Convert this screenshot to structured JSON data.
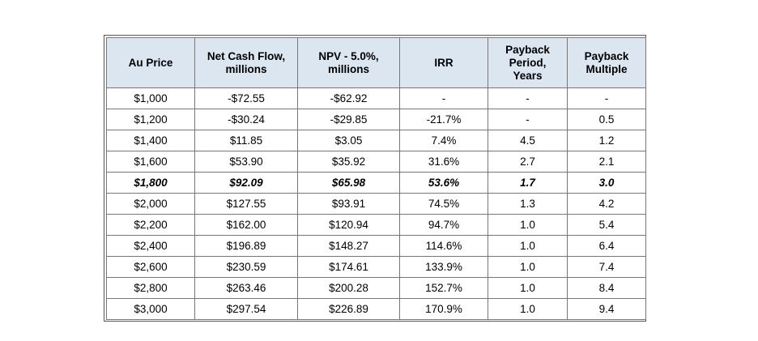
{
  "table": {
    "headers": [
      [
        "Au Price"
      ],
      [
        "Net Cash Flow,",
        "millions"
      ],
      [
        "NPV - 5.0%,",
        "millions"
      ],
      [
        "IRR"
      ],
      [
        "Payback",
        "Period,",
        "Years"
      ],
      [
        "Payback",
        "Multiple"
      ]
    ],
    "rows": [
      {
        "cells": [
          "$1,000",
          "-$72.55",
          "-$62.92",
          "-",
          "-",
          "-"
        ],
        "bold": false
      },
      {
        "cells": [
          "$1,200",
          "-$30.24",
          "-$29.85",
          "-21.7%",
          "-",
          "0.5"
        ],
        "bold": false
      },
      {
        "cells": [
          "$1,400",
          "$11.85",
          "$3.05",
          "7.4%",
          "4.5",
          "1.2"
        ],
        "bold": false
      },
      {
        "cells": [
          "$1,600",
          "$53.90",
          "$35.92",
          "31.6%",
          "2.7",
          "2.1"
        ],
        "bold": false
      },
      {
        "cells": [
          "$1,800",
          "$92.09",
          "$65.98",
          "53.6%",
          "1.7",
          "3.0"
        ],
        "bold": true
      },
      {
        "cells": [
          "$2,000",
          "$127.55",
          "$93.91",
          "74.5%",
          "1.3",
          "4.2"
        ],
        "bold": false
      },
      {
        "cells": [
          "$2,200",
          "$162.00",
          "$120.94",
          "94.7%",
          "1.0",
          "5.4"
        ],
        "bold": false
      },
      {
        "cells": [
          "$2,400",
          "$196.89",
          "$148.27",
          "114.6%",
          "1.0",
          "6.4"
        ],
        "bold": false
      },
      {
        "cells": [
          "$2,600",
          "$230.59",
          "$174.61",
          "133.9%",
          "1.0",
          "7.4"
        ],
        "bold": false
      },
      {
        "cells": [
          "$2,800",
          "$263.46",
          "$200.28",
          "152.7%",
          "1.0",
          "8.4"
        ],
        "bold": false
      },
      {
        "cells": [
          "$3,000",
          "$297.54",
          "$226.89",
          "170.9%",
          "1.0",
          "9.4"
        ],
        "bold": false
      }
    ],
    "header_background": "#dce6f1",
    "border_color": "#777777"
  }
}
